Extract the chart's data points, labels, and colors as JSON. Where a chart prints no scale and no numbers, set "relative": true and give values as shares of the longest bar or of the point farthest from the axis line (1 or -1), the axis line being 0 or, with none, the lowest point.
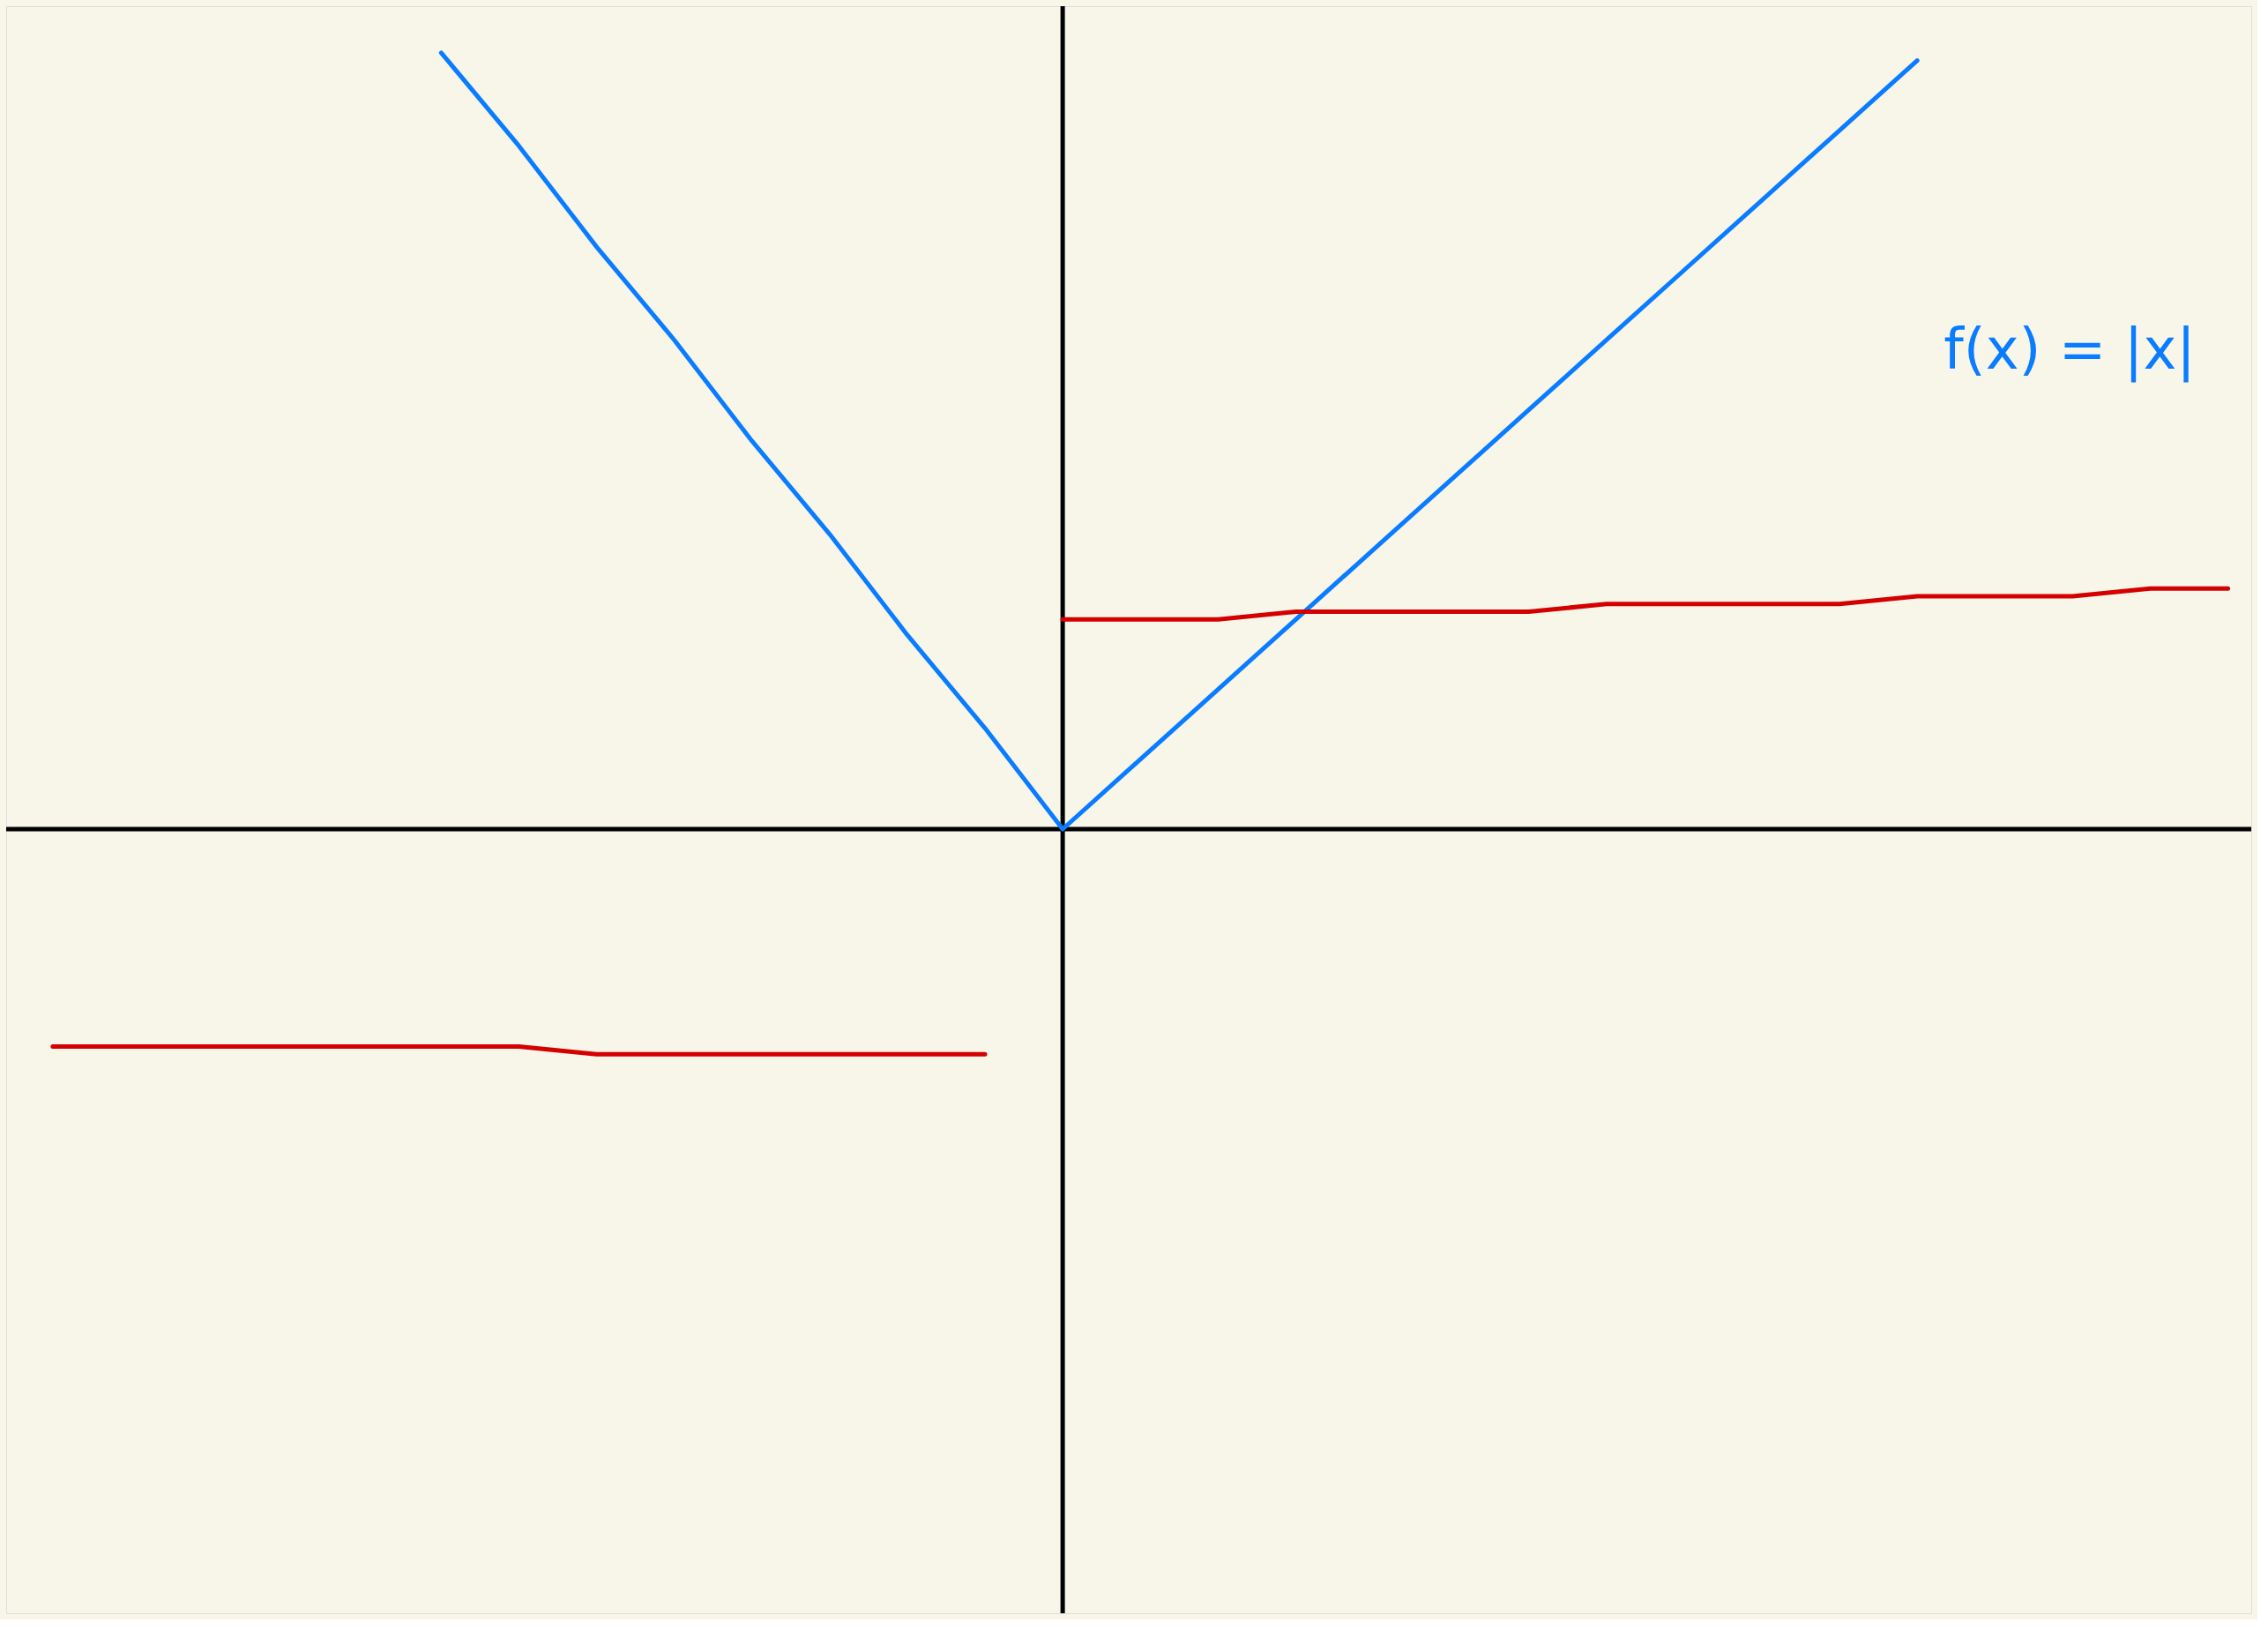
{
  "chart_data": {
    "type": "line",
    "relative": true,
    "grid": false,
    "legend": false,
    "marker": "none",
    "line_style": "solid",
    "categories": [
      null,
      null,
      null,
      null,
      null,
      null,
      null,
      null,
      null,
      null,
      null,
      null,
      null,
      null,
      null,
      null,
      null,
      null,
      null,
      null,
      null,
      null,
      null,
      null,
      null,
      null,
      null,
      null,
      null
    ],
    "series": [
      {
        "name": "f(x) = |x|",
        "color": "#0a7cff",
        "values": [
          null,
          null,
          null,
          null,
          null,
          1,
          0.88,
          0.75,
          0.63,
          0.5,
          0.38,
          0.25,
          0.13,
          0,
          0.09,
          0.18,
          0.27,
          0.36,
          0.45,
          0.54,
          0.63,
          0.72,
          0.81,
          0.9,
          0.99,
          null,
          null,
          null,
          null
        ]
      },
      {
        "color": "#d40000",
        "values": [
          -0.28,
          -0.28,
          -0.28,
          -0.28,
          -0.28,
          -0.28,
          -0.28,
          -0.29,
          -0.29,
          -0.29,
          -0.29,
          -0.29,
          -0.29,
          null,
          null,
          null,
          null,
          null,
          null,
          null,
          null,
          null,
          null,
          null,
          null,
          null,
          null,
          null,
          null
        ]
      },
      {
        "color": "#d40000",
        "values": [
          null,
          null,
          null,
          null,
          null,
          null,
          null,
          null,
          null,
          null,
          null,
          null,
          null,
          0.27,
          0.27,
          0.27,
          0.28,
          0.28,
          0.28,
          0.28,
          0.29,
          0.29,
          0.29,
          0.29,
          0.3,
          0.3,
          0.3,
          0.31,
          0.31
        ]
      }
    ]
  }
}
